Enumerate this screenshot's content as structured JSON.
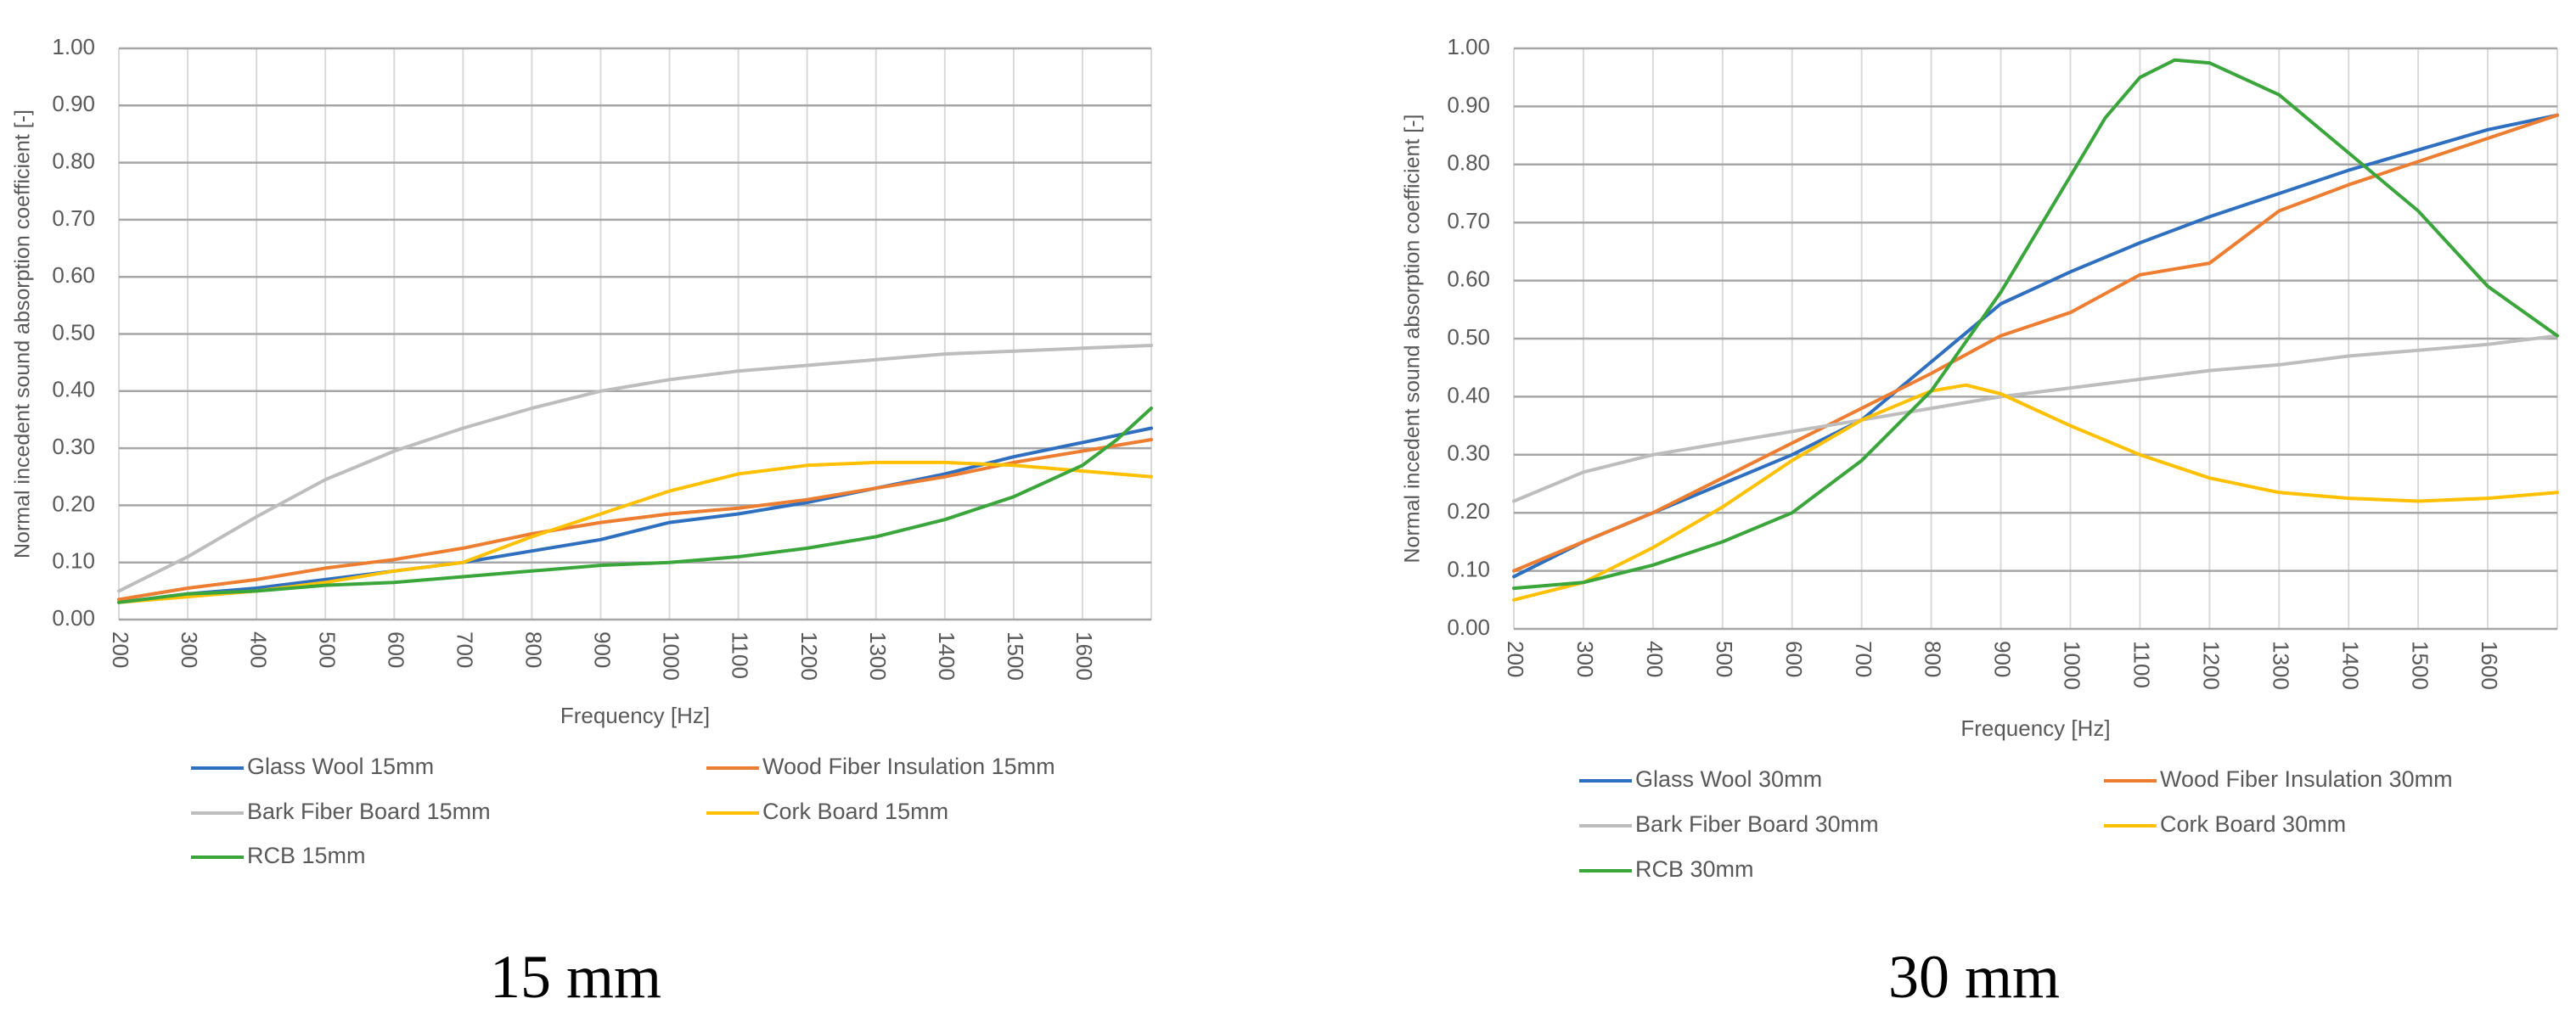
{
  "chart_data": [
    {
      "type": "line",
      "panel_label": "15 mm",
      "xlabel": "Frequency [Hz]",
      "ylabel": "Normal incedent sound absorption coefficient [-]",
      "xlim": [
        200,
        1700
      ],
      "ylim": [
        0,
        1
      ],
      "x_ticks": [
        "200",
        "300",
        "400",
        "500",
        "600",
        "700",
        "800",
        "900",
        "1000",
        "1100",
        "1200",
        "1300",
        "1400",
        "1500",
        "1600"
      ],
      "y_ticks": [
        "0.00",
        "0.10",
        "0.20",
        "0.30",
        "0.40",
        "0.50",
        "0.60",
        "0.70",
        "0.80",
        "0.90",
        "1.00"
      ],
      "grid": true,
      "legend": "bottom",
      "series": [
        {
          "name": "Glass Wool 15mm",
          "color": "#2f6fbf",
          "x": [
            200,
            300,
            400,
            500,
            600,
            700,
            800,
            900,
            1000,
            1100,
            1200,
            1300,
            1400,
            1500,
            1600,
            1700
          ],
          "y": [
            0.03,
            0.045,
            0.055,
            0.07,
            0.085,
            0.1,
            0.12,
            0.14,
            0.17,
            0.185,
            0.205,
            0.23,
            0.255,
            0.285,
            0.31,
            0.335
          ]
        },
        {
          "name": "Wood Fiber Insulation 15mm",
          "color": "#ed7d31",
          "x": [
            200,
            300,
            400,
            500,
            600,
            700,
            800,
            900,
            1000,
            1100,
            1200,
            1300,
            1400,
            1500,
            1600,
            1700
          ],
          "y": [
            0.035,
            0.055,
            0.07,
            0.09,
            0.105,
            0.125,
            0.15,
            0.17,
            0.185,
            0.195,
            0.21,
            0.23,
            0.25,
            0.275,
            0.295,
            0.315
          ]
        },
        {
          "name": "Bark Fiber Board 15mm",
          "color": "#bdbdbd",
          "x": [
            200,
            300,
            400,
            500,
            600,
            700,
            800,
            900,
            1000,
            1100,
            1200,
            1300,
            1400,
            1500,
            1600,
            1700
          ],
          "y": [
            0.05,
            0.11,
            0.18,
            0.245,
            0.295,
            0.335,
            0.37,
            0.4,
            0.42,
            0.435,
            0.445,
            0.455,
            0.465,
            0.47,
            0.475,
            0.48
          ]
        },
        {
          "name": "Cork Board 15mm",
          "color": "#ffc000",
          "x": [
            200,
            300,
            400,
            500,
            600,
            700,
            800,
            900,
            1000,
            1100,
            1200,
            1300,
            1400,
            1500,
            1600,
            1700
          ],
          "y": [
            0.03,
            0.04,
            0.05,
            0.065,
            0.085,
            0.1,
            0.145,
            0.185,
            0.225,
            0.255,
            0.27,
            0.275,
            0.275,
            0.27,
            0.26,
            0.25
          ]
        },
        {
          "name": "RCB 15mm",
          "color": "#3aa53a",
          "x": [
            200,
            300,
            400,
            500,
            600,
            700,
            800,
            900,
            1000,
            1100,
            1200,
            1300,
            1400,
            1500,
            1600,
            1650,
            1700
          ],
          "y": [
            0.03,
            0.045,
            0.05,
            0.06,
            0.065,
            0.075,
            0.085,
            0.095,
            0.1,
            0.11,
            0.125,
            0.145,
            0.175,
            0.215,
            0.27,
            0.315,
            0.37
          ]
        }
      ]
    },
    {
      "type": "line",
      "panel_label": "30 mm",
      "xlabel": "Frequency [Hz]",
      "ylabel": "Normal incedent sound absorption coefficient [-]",
      "xlim": [
        200,
        1700
      ],
      "ylim": [
        0,
        1
      ],
      "x_ticks": [
        "200",
        "300",
        "400",
        "500",
        "600",
        "700",
        "800",
        "900",
        "1000",
        "1100",
        "1200",
        "1300",
        "1400",
        "1500",
        "1600"
      ],
      "y_ticks": [
        "0.00",
        "0.10",
        "0.20",
        "0.30",
        "0.40",
        "0.50",
        "0.60",
        "0.70",
        "0.80",
        "0.90",
        "1.00"
      ],
      "grid": true,
      "legend": "bottom",
      "series": [
        {
          "name": "Glass Wool 30mm",
          "color": "#2f6fbf",
          "x": [
            200,
            300,
            400,
            500,
            600,
            700,
            800,
            900,
            1000,
            1100,
            1200,
            1300,
            1400,
            1500,
            1600,
            1700
          ],
          "y": [
            0.09,
            0.15,
            0.2,
            0.25,
            0.3,
            0.36,
            0.46,
            0.56,
            0.615,
            0.665,
            0.71,
            0.75,
            0.79,
            0.825,
            0.86,
            0.885
          ]
        },
        {
          "name": "Wood Fiber Insulation 30mm",
          "color": "#ed7d31",
          "x": [
            200,
            300,
            400,
            500,
            600,
            700,
            800,
            900,
            1000,
            1100,
            1200,
            1300,
            1400,
            1500,
            1600,
            1700
          ],
          "y": [
            0.1,
            0.15,
            0.2,
            0.26,
            0.32,
            0.38,
            0.44,
            0.505,
            0.545,
            0.61,
            0.63,
            0.72,
            0.765,
            0.805,
            0.845,
            0.885
          ]
        },
        {
          "name": "Bark Fiber Board 30mm",
          "color": "#bdbdbd",
          "x": [
            200,
            300,
            400,
            500,
            600,
            700,
            800,
            900,
            1000,
            1100,
            1200,
            1300,
            1400,
            1500,
            1600,
            1700
          ],
          "y": [
            0.22,
            0.27,
            0.3,
            0.32,
            0.34,
            0.36,
            0.38,
            0.4,
            0.415,
            0.43,
            0.445,
            0.455,
            0.47,
            0.48,
            0.49,
            0.505
          ]
        },
        {
          "name": "Cork Board 30mm",
          "color": "#ffc000",
          "x": [
            200,
            300,
            400,
            500,
            600,
            700,
            800,
            850,
            900,
            1000,
            1100,
            1200,
            1300,
            1400,
            1500,
            1600,
            1700
          ],
          "y": [
            0.05,
            0.08,
            0.14,
            0.21,
            0.29,
            0.36,
            0.41,
            0.42,
            0.405,
            0.35,
            0.3,
            0.26,
            0.235,
            0.225,
            0.22,
            0.225,
            0.235
          ]
        },
        {
          "name": "RCB 30mm",
          "color": "#3aa53a",
          "x": [
            200,
            300,
            400,
            500,
            600,
            700,
            800,
            900,
            1000,
            1050,
            1100,
            1150,
            1200,
            1300,
            1400,
            1500,
            1600,
            1700
          ],
          "y": [
            0.07,
            0.08,
            0.11,
            0.15,
            0.2,
            0.29,
            0.41,
            0.58,
            0.78,
            0.88,
            0.95,
            0.98,
            0.975,
            0.92,
            0.82,
            0.72,
            0.59,
            0.505
          ]
        }
      ]
    }
  ]
}
